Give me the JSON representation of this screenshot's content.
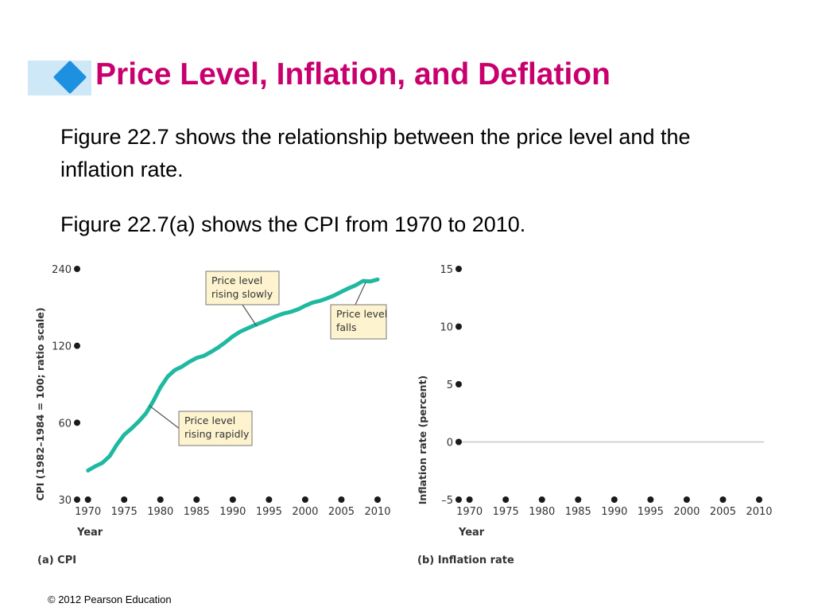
{
  "slide": {
    "title": "Price Level, Inflation, and Deflation",
    "paragraphs": [
      "Figure 22.7 shows the relationship between the price level and the inflation rate.",
      "Figure 22.7(a) shows the CPI from 1970 to 2010."
    ],
    "footer": "© 2012 Pearson Education"
  },
  "colors": {
    "title": "#c8006e",
    "accent_bar": "#cfe8f7",
    "diamond": "#1e90e0",
    "cpi_line": "#1fb8a0",
    "callout_fill": "#fdf3cf"
  },
  "chart_data": [
    {
      "type": "line",
      "caption": "(a) CPI",
      "xlabel": "Year",
      "ylabel": "CPI (1982–1984 = 100; ratio scale)",
      "yscale": "log",
      "x_ticks": [
        "1970",
        "1975",
        "1980",
        "1985",
        "1990",
        "1995",
        "2000",
        "2005",
        "2010"
      ],
      "y_ticks": [
        {
          "value": 30,
          "label": "30"
        },
        {
          "value": 60,
          "label": "60"
        },
        {
          "value": 120,
          "label": "120"
        },
        {
          "value": 240,
          "label": "240"
        }
      ],
      "xlim": [
        1968.5,
        2010
      ],
      "ylim": [
        30,
        240
      ],
      "series": [
        {
          "x": [
            1970,
            1971,
            1972,
            1973,
            1974,
            1975,
            1976,
            1977,
            1978,
            1979,
            1980,
            1981,
            1982,
            1983,
            1984,
            1985,
            1986,
            1987,
            1988,
            1989,
            1990,
            1991,
            1992,
            1993,
            1994,
            1995,
            1996,
            1997,
            1998,
            1999,
            2000,
            2001,
            2002,
            2003,
            2004,
            2005,
            2006,
            2007,
            2008,
            2009,
            2010
          ],
          "values": [
            39,
            40.5,
            41.8,
            44.4,
            49.3,
            53.8,
            56.9,
            60.6,
            65.2,
            72.6,
            82.4,
            90.9,
            96.5,
            99.6,
            103.9,
            107.6,
            109.6,
            113.6,
            118.3,
            124,
            130.7,
            136.2,
            140.3,
            144.5,
            148.2,
            152.4,
            156.9,
            160.5,
            163,
            166.6,
            172.2,
            177.1,
            179.9,
            184,
            188.9,
            195.3,
            201.6,
            207.3,
            215.3,
            214.5,
            218.1
          ]
        }
      ],
      "annotations": [
        {
          "text": [
            "Price level",
            "rising slowly"
          ]
        },
        {
          "text": [
            "Price level",
            "falls"
          ]
        },
        {
          "text": [
            "Price level",
            "rising rapidly"
          ]
        }
      ]
    },
    {
      "type": "line",
      "caption": "(b) Inflation rate",
      "xlabel": "Year",
      "ylabel": "Inflation rate (percent)",
      "x_ticks": [
        "1970",
        "1975",
        "1980",
        "1985",
        "1990",
        "1995",
        "2000",
        "2005",
        "2010"
      ],
      "y_ticks": [
        {
          "value": 15,
          "label": "15"
        },
        {
          "value": 10,
          "label": "10"
        },
        {
          "value": 5,
          "label": "5"
        },
        {
          "value": 0,
          "label": "0"
        },
        {
          "value": -5,
          "label": "–5"
        }
      ],
      "xlim": [
        1968.5,
        2010
      ],
      "ylim": [
        -5,
        15
      ],
      "reference_line": 0,
      "series": []
    }
  ]
}
